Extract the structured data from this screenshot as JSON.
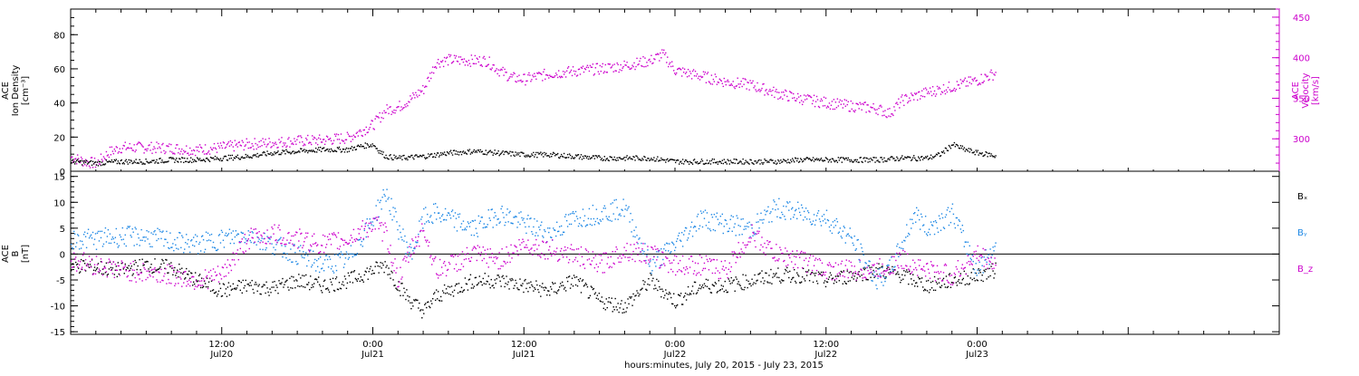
{
  "chart_data": [
    {
      "type": "scatter",
      "panel": "top",
      "ylabel_left": [
        "ACE",
        "Ion Density",
        "[cm⁻³]"
      ],
      "ylabel_right": [
        "ACE",
        "Velocity",
        "[km/s]"
      ],
      "ylim_left": [
        0,
        95
      ],
      "ylim_right": [
        260,
        460
      ],
      "yticks_left": [
        0,
        20,
        40,
        60,
        80
      ],
      "yticks_right": [
        300,
        350,
        400,
        450
      ],
      "series": [
        {
          "axis": "left",
          "color": "#000000",
          "points": [
            [
              0.0,
              6
            ],
            [
              2,
              5
            ],
            [
              4,
              6
            ],
            [
              6,
              6
            ],
            [
              8,
              7
            ],
            [
              10,
              7
            ],
            [
              12,
              8
            ],
            [
              14,
              9
            ],
            [
              16,
              11
            ],
            [
              18,
              12
            ],
            [
              20,
              13
            ],
            [
              22,
              13
            ],
            [
              23,
              15
            ],
            [
              24,
              16
            ],
            [
              24.5,
              12
            ],
            [
              25,
              9
            ],
            [
              26,
              8
            ],
            [
              28,
              9
            ],
            [
              30,
              11
            ],
            [
              32,
              12
            ],
            [
              34,
              11
            ],
            [
              36,
              10
            ],
            [
              38,
              10
            ],
            [
              40,
              9
            ],
            [
              42,
              8
            ],
            [
              44,
              8
            ],
            [
              46,
              8
            ],
            [
              47,
              7
            ],
            [
              48,
              6
            ],
            [
              50,
              6
            ],
            [
              52,
              6
            ],
            [
              54,
              6
            ],
            [
              56,
              6
            ],
            [
              58,
              7
            ],
            [
              60,
              7
            ],
            [
              62,
              7
            ],
            [
              64,
              7
            ],
            [
              66,
              8
            ],
            [
              68,
              8
            ],
            [
              69,
              10
            ],
            [
              70,
              16
            ],
            [
              71,
              13
            ],
            [
              72,
              11
            ],
            [
              73,
              10
            ],
            [
              73.5,
              9
            ]
          ]
        },
        {
          "axis": "right",
          "color": "#cc00cc",
          "points": [
            [
              0.0,
              278
            ],
            [
              1,
              273
            ],
            [
              2,
              270
            ],
            [
              3,
              284
            ],
            [
              4,
              290
            ],
            [
              6,
              290
            ],
            [
              8,
              289
            ],
            [
              10,
              287
            ],
            [
              12,
              290
            ],
            [
              14,
              294
            ],
            [
              16,
              296
            ],
            [
              18,
              298
            ],
            [
              20,
              299
            ],
            [
              22,
              302
            ],
            [
              24,
              318
            ],
            [
              25,
              336
            ],
            [
              26,
              340
            ],
            [
              27,
              350
            ],
            [
              28,
              362
            ],
            [
              29,
              395
            ],
            [
              30,
              398
            ],
            [
              32,
              397
            ],
            [
              33,
              397
            ],
            [
              34,
              385
            ],
            [
              35,
              376
            ],
            [
              36,
              374
            ],
            [
              38,
              381
            ],
            [
              40,
              384
            ],
            [
              42,
              387
            ],
            [
              44,
              391
            ],
            [
              46,
              397
            ],
            [
              47,
              405
            ],
            [
              48,
              385
            ],
            [
              50,
              378
            ],
            [
              52,
              371
            ],
            [
              54,
              367
            ],
            [
              56,
              357
            ],
            [
              58,
              350
            ],
            [
              60,
              345
            ],
            [
              62,
              341
            ],
            [
              64,
              338
            ],
            [
              65,
              332
            ],
            [
              66,
              348
            ],
            [
              68,
              358
            ],
            [
              70,
              365
            ],
            [
              72,
              373
            ],
            [
              73.5,
              382
            ]
          ]
        }
      ]
    },
    {
      "type": "scatter",
      "panel": "bottom",
      "ylabel_left": [
        "ACE",
        "B",
        "[nT]"
      ],
      "ylim": [
        -15.5,
        16
      ],
      "yticks": [
        -15,
        -10,
        -5,
        0,
        5,
        10,
        15
      ],
      "legend": [
        "Bₓ",
        "Bᵧ",
        "B_z"
      ],
      "legend_placement": "right",
      "series": [
        {
          "name": "Bₓ",
          "color": "#000000",
          "points": [
            [
              0.0,
              -2
            ],
            [
              2,
              -2.5
            ],
            [
              4,
              -3
            ],
            [
              6,
              -2
            ],
            [
              8,
              -2.5
            ],
            [
              10,
              -5
            ],
            [
              12,
              -7
            ],
            [
              14,
              -6
            ],
            [
              16,
              -6.5
            ],
            [
              18,
              -5
            ],
            [
              20,
              -6
            ],
            [
              22,
              -5
            ],
            [
              24,
              -3
            ],
            [
              25,
              -2
            ],
            [
              26,
              -6
            ],
            [
              27,
              -9
            ],
            [
              28,
              -11
            ],
            [
              29,
              -8
            ],
            [
              30,
              -7
            ],
            [
              31,
              -6
            ],
            [
              32,
              -5
            ],
            [
              34,
              -5
            ],
            [
              36,
              -6
            ],
            [
              38,
              -7
            ],
            [
              40,
              -5
            ],
            [
              42,
              -9
            ],
            [
              44,
              -10
            ],
            [
              46,
              -5
            ],
            [
              48,
              -9
            ],
            [
              50,
              -6
            ],
            [
              52,
              -6
            ],
            [
              54,
              -5
            ],
            [
              56,
              -4
            ],
            [
              58,
              -4
            ],
            [
              60,
              -5
            ],
            [
              62,
              -4
            ],
            [
              64,
              -3
            ],
            [
              66,
              -4
            ],
            [
              68,
              -6
            ],
            [
              70,
              -5
            ],
            [
              72,
              -4
            ],
            [
              73.5,
              -3
            ]
          ]
        },
        {
          "name": "Bᵧ",
          "color": "#1e88e5",
          "points": [
            [
              0.0,
              3
            ],
            [
              2,
              3
            ],
            [
              4,
              3.5
            ],
            [
              6,
              3.5
            ],
            [
              8,
              2.5
            ],
            [
              10,
              2
            ],
            [
              12,
              3
            ],
            [
              14,
              4
            ],
            [
              16,
              2
            ],
            [
              18,
              0
            ],
            [
              20,
              -2
            ],
            [
              22,
              -1
            ],
            [
              24,
              7
            ],
            [
              25,
              12
            ],
            [
              26,
              5
            ],
            [
              27,
              0
            ],
            [
              28,
              7
            ],
            [
              29,
              8
            ],
            [
              30,
              7
            ],
            [
              32,
              5
            ],
            [
              34,
              8
            ],
            [
              36,
              6
            ],
            [
              38,
              4
            ],
            [
              40,
              7
            ],
            [
              42,
              8
            ],
            [
              44,
              9
            ],
            [
              46,
              -2
            ],
            [
              48,
              2
            ],
            [
              50,
              7
            ],
            [
              52,
              6
            ],
            [
              54,
              5
            ],
            [
              56,
              9
            ],
            [
              58,
              8
            ],
            [
              60,
              7
            ],
            [
              62,
              3
            ],
            [
              64,
              -5
            ],
            [
              65,
              -3
            ],
            [
              66,
              2
            ],
            [
              67,
              8
            ],
            [
              68,
              5
            ],
            [
              70,
              8
            ],
            [
              72,
              -3
            ],
            [
              73.5,
              2
            ]
          ]
        },
        {
          "name": "B_z",
          "color": "#cc00cc",
          "points": [
            [
              0.0,
              -1
            ],
            [
              2,
              -2
            ],
            [
              4,
              -3
            ],
            [
              6,
              -3.5
            ],
            [
              8,
              -4
            ],
            [
              10,
              -5
            ],
            [
              12,
              -4
            ],
            [
              14,
              3
            ],
            [
              16,
              4
            ],
            [
              18,
              3
            ],
            [
              20,
              2
            ],
            [
              22,
              3
            ],
            [
              24,
              6
            ],
            [
              25,
              4
            ],
            [
              26,
              -5
            ],
            [
              27,
              1
            ],
            [
              28,
              5
            ],
            [
              29,
              -3
            ],
            [
              30,
              -2
            ],
            [
              32,
              0
            ],
            [
              34,
              -1
            ],
            [
              36,
              2
            ],
            [
              38,
              1
            ],
            [
              40,
              0
            ],
            [
              42,
              -2
            ],
            [
              44,
              1
            ],
            [
              46,
              0
            ],
            [
              48,
              -2
            ],
            [
              50,
              -2
            ],
            [
              52,
              -3
            ],
            [
              54,
              4
            ],
            [
              56,
              0
            ],
            [
              58,
              -1
            ],
            [
              60,
              -3
            ],
            [
              62,
              -3
            ],
            [
              64,
              -3
            ],
            [
              66,
              -1
            ],
            [
              68,
              -3
            ],
            [
              70,
              -4
            ],
            [
              72,
              0
            ],
            [
              73.5,
              -2
            ]
          ]
        }
      ]
    }
  ],
  "x_axis": {
    "xlim": [
      0,
      96
    ],
    "xlabel": "hours:minutes, July 20, 2015 - July 23, 2015",
    "major_ticks": [
      {
        "x": 12,
        "time": "12:00",
        "date": "Jul20"
      },
      {
        "x": 24,
        "time": "0:00",
        "date": "Jul21"
      },
      {
        "x": 36,
        "time": "12:00",
        "date": "Jul21"
      },
      {
        "x": 48,
        "time": "0:00",
        "date": "Jul22"
      },
      {
        "x": 60,
        "time": "12:00",
        "date": "Jul22"
      },
      {
        "x": 72,
        "time": "0:00",
        "date": "Jul23"
      }
    ]
  }
}
